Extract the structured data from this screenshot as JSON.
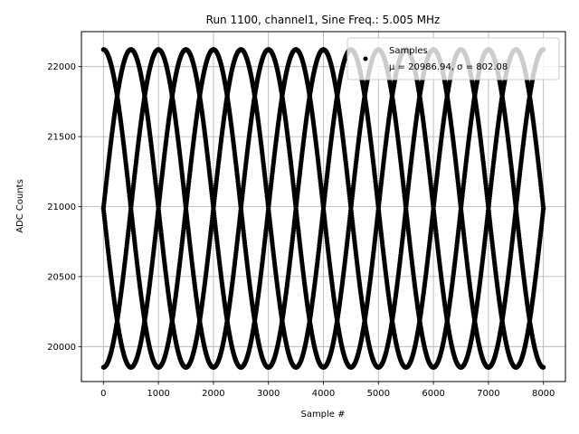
{
  "chart_data": {
    "type": "scatter",
    "title": "Run 1100, channel1, Sine Freq.: 5.005 MHz",
    "xlabel": "Sample #",
    "ylabel": "ADC Counts",
    "xlim": [
      -400,
      8400
    ],
    "ylim": [
      19750,
      22250
    ],
    "x_ticks": [
      0,
      1000,
      2000,
      3000,
      4000,
      5000,
      6000,
      7000,
      8000
    ],
    "y_ticks": [
      20000,
      20500,
      21000,
      21500,
      22000
    ],
    "grid": true,
    "legend_position": "top-right",
    "legend": {
      "title": "Samples",
      "stats": "μ = 20986.94, σ = 802.08"
    },
    "series": [
      {
        "name": "Samples",
        "color": "#000000",
        "marker": "dot",
        "model": "sine",
        "mean": 20986.94,
        "amplitude": 1135,
        "period_samples": 2000,
        "phase_offsets_deg": [
          0,
          90,
          180,
          270
        ],
        "x_range": [
          0,
          8000
        ]
      }
    ],
    "mu": 20986.94,
    "sigma": 802.08
  }
}
